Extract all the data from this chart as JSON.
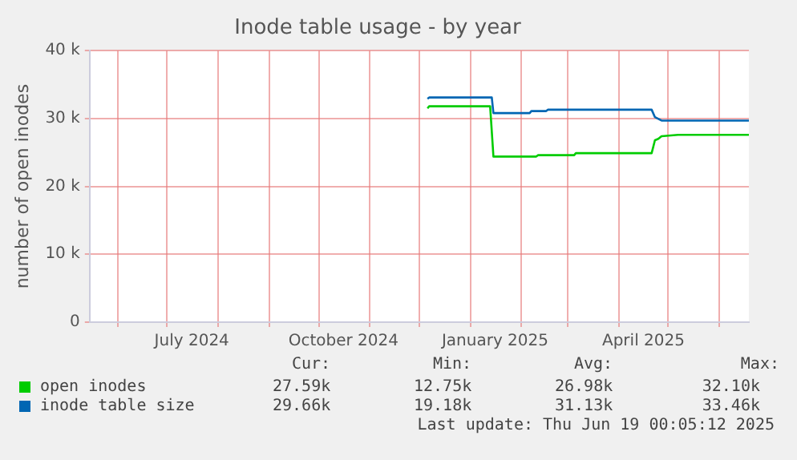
{
  "chart_data": {
    "type": "line",
    "title": "Inode table usage - by year",
    "ylabel": "number of open inodes",
    "xlim": [
      "2024-05-15",
      "2025-06-19"
    ],
    "xticks": [
      {
        "value": "2024-06-01",
        "label": null
      },
      {
        "value": "2024-07-01",
        "label": null
      },
      {
        "value": "2024-07-16",
        "label": "July 2024"
      },
      {
        "value": "2024-08-01",
        "label": null
      },
      {
        "value": "2024-09-01",
        "label": null
      },
      {
        "value": "2024-10-01",
        "label": null
      },
      {
        "value": "2024-10-16",
        "label": "October 2024"
      },
      {
        "value": "2024-11-01",
        "label": null
      },
      {
        "value": "2024-12-01",
        "label": null
      },
      {
        "value": "2025-01-01",
        "label": null
      },
      {
        "value": "2025-01-16",
        "label": "January 2025"
      },
      {
        "value": "2025-02-01",
        "label": null
      },
      {
        "value": "2025-03-01",
        "label": null
      },
      {
        "value": "2025-04-01",
        "label": null
      },
      {
        "value": "2025-04-16",
        "label": "April 2025"
      },
      {
        "value": "2025-05-01",
        "label": null
      },
      {
        "value": "2025-06-01",
        "label": null
      }
    ],
    "ylim": [
      0,
      40000
    ],
    "yticks": [
      {
        "value": 0,
        "label": "0"
      },
      {
        "value": 10000,
        "label": "10 k"
      },
      {
        "value": 20000,
        "label": "20 k"
      },
      {
        "value": 30000,
        "label": "30 k"
      },
      {
        "value": 40000,
        "label": "40 k"
      }
    ],
    "grid": true,
    "legend": "bottom",
    "marker": "none",
    "line_style": "solid",
    "series": [
      {
        "name": "open inodes",
        "color": "#00cc00",
        "x": [
          "2024-12-06",
          "2024-12-07",
          "2025-01-13",
          "2025-01-15",
          "2025-02-10",
          "2025-02-11",
          "2025-03-05",
          "2025-03-06",
          "2025-04-21",
          "2025-04-23",
          "2025-04-25",
          "2025-04-27",
          "2025-05-07",
          "2025-06-19"
        ],
        "values": [
          31500,
          31800,
          31800,
          24400,
          24400,
          24600,
          24600,
          24900,
          24900,
          26800,
          27000,
          27400,
          27600,
          27600
        ]
      },
      {
        "name": "inode table size",
        "color": "#0066b3",
        "x": [
          "2024-12-06",
          "2024-12-07",
          "2025-01-14",
          "2025-01-15",
          "2025-02-06",
          "2025-02-07",
          "2025-02-16",
          "2025-02-17",
          "2025-04-21",
          "2025-04-23",
          "2025-04-27",
          "2025-06-19"
        ],
        "values": [
          32900,
          33100,
          33100,
          30800,
          30800,
          31100,
          31100,
          31300,
          31300,
          30200,
          29700,
          29700
        ]
      }
    ],
    "annotations": [
      "Cur:",
      "Min:",
      "Avg:",
      "Max:",
      "27.59k",
      "12.75k",
      "26.98k",
      "32.10k",
      "29.66k",
      "19.18k",
      "31.13k",
      "33.46k",
      "Last update: Thu Jun 19 00:05:12 2025"
    ]
  }
}
